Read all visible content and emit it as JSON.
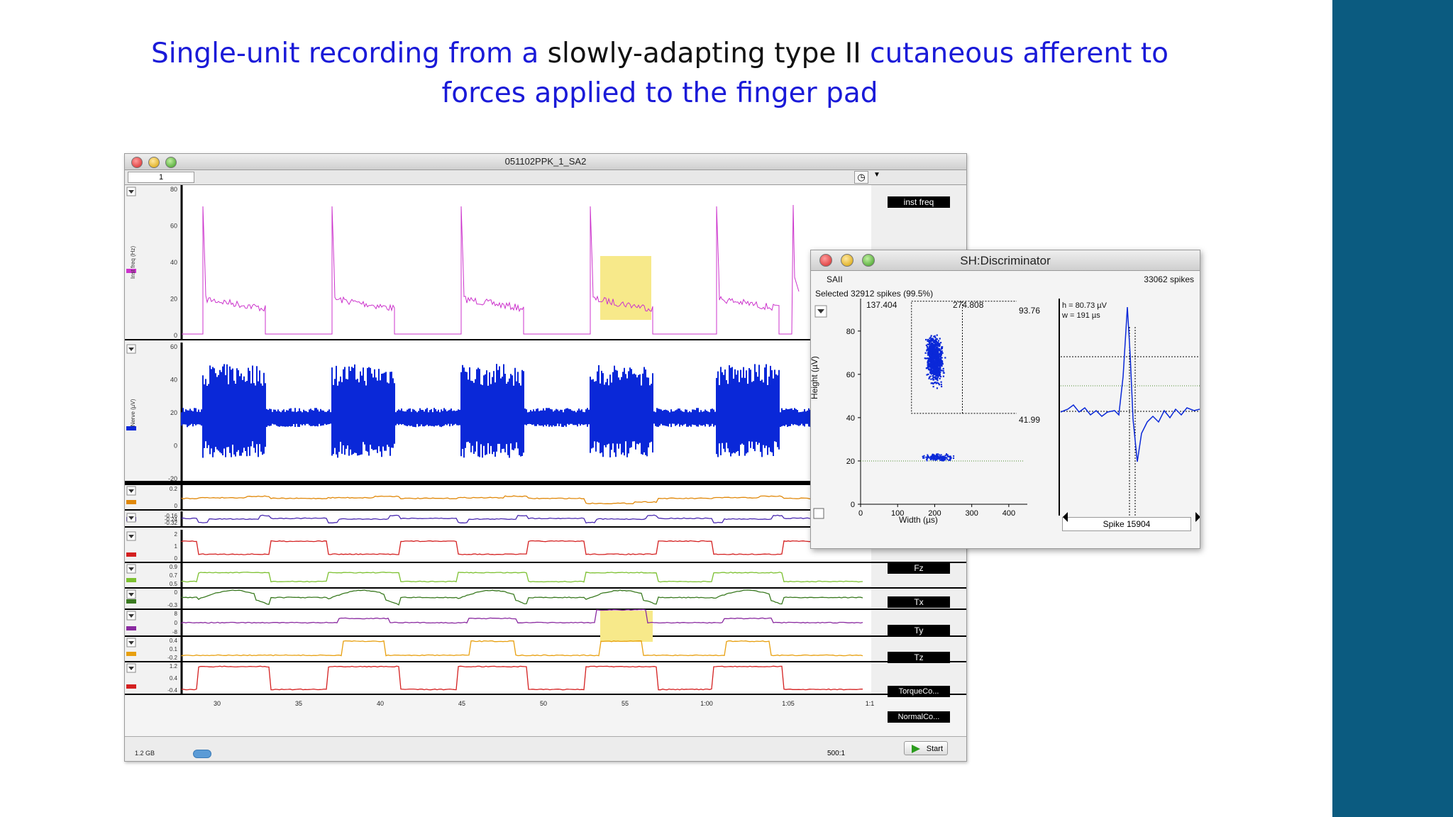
{
  "slide": {
    "title_part1": "Single-unit recording from a",
    "title_part2": " slowly-adapting type II ",
    "title_part3": "cutaneous afferent to forces applied to the finger pad"
  },
  "main_window": {
    "title": "051102PPK_1_SA2",
    "page_field": "1",
    "channels": [
      {
        "name": "inst freq",
        "ylabel": "Inst freq (Hz)",
        "color": "#cc33cc",
        "ticks": [
          "80",
          "60",
          "40",
          "20",
          "0"
        ]
      },
      {
        "name": "Nerve",
        "ylabel": "Nerve (µV)",
        "color": "#0a28d8",
        "ticks": [
          "60",
          "40",
          "20",
          "0",
          "-20"
        ]
      },
      {
        "name": "",
        "color": "#e0880a",
        "ticks": [
          "0.2",
          "0"
        ]
      },
      {
        "name": "",
        "color": "#4a2ab0",
        "ticks": [
          "-0.16",
          "-0.24",
          "-0.32"
        ]
      },
      {
        "name": "Fz",
        "color": "#d42020",
        "ticks": [
          "2",
          "1",
          "0"
        ]
      },
      {
        "name": "Tx",
        "color": "#7cc030",
        "ticks": [
          "0.9",
          "0.7",
          "0.5"
        ]
      },
      {
        "name": "Ty",
        "color": "#3a7a20",
        "ticks": [
          "0",
          "-0.3"
        ]
      },
      {
        "name": "Tz",
        "color": "#8a2aa0",
        "ticks": [
          "8",
          "0",
          "-8"
        ]
      },
      {
        "name": "TorqueCo...",
        "color": "#e8a010",
        "ticks": [
          "0.4",
          "0.1",
          "-0.2"
        ]
      },
      {
        "name": "NormalCo...",
        "color": "#d42020",
        "ticks": [
          "1.2",
          "0.4",
          "-0.4"
        ]
      }
    ],
    "time_ticks": [
      "30",
      "35",
      "40",
      "45",
      "50",
      "55",
      "1:00",
      "1:05",
      "1:1"
    ],
    "memory": "1.2 GB",
    "zoom": "500:1",
    "start_label": "Start"
  },
  "discriminator": {
    "title": "SH:Discriminator",
    "unit": "SAII",
    "total_spikes": "33062 spikes",
    "selected": "Selected 32912 spikes (99.5%)",
    "width_min": "137.404",
    "width_max": "274.808",
    "height_max": "93.76",
    "height_min": "41.99",
    "h_value": "h = 80.73 µV",
    "w_value": "w = 191 µs",
    "y_axis_label": "Height (µV)",
    "x_axis_label": "Width (µs)",
    "y_ticks": [
      "80",
      "60",
      "40",
      "20",
      "0"
    ],
    "x_ticks": [
      "0",
      "100",
      "200",
      "300",
      "400"
    ],
    "spike_label": "Spike 15904"
  }
}
